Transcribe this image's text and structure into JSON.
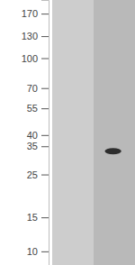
{
  "chart_data": {
    "type": "western_blot",
    "categories": [
      null,
      null
    ],
    "values": [
      null,
      33
    ],
    "colors": [
      "#cdcdcd",
      "#b9b9b9"
    ],
    "color": "#2e2e2e",
    "log": "y",
    "ylim": [
      8.5,
      200
    ],
    "yticks": [
      10,
      15,
      25,
      35,
      40,
      55,
      70,
      100,
      130,
      170
    ]
  }
}
